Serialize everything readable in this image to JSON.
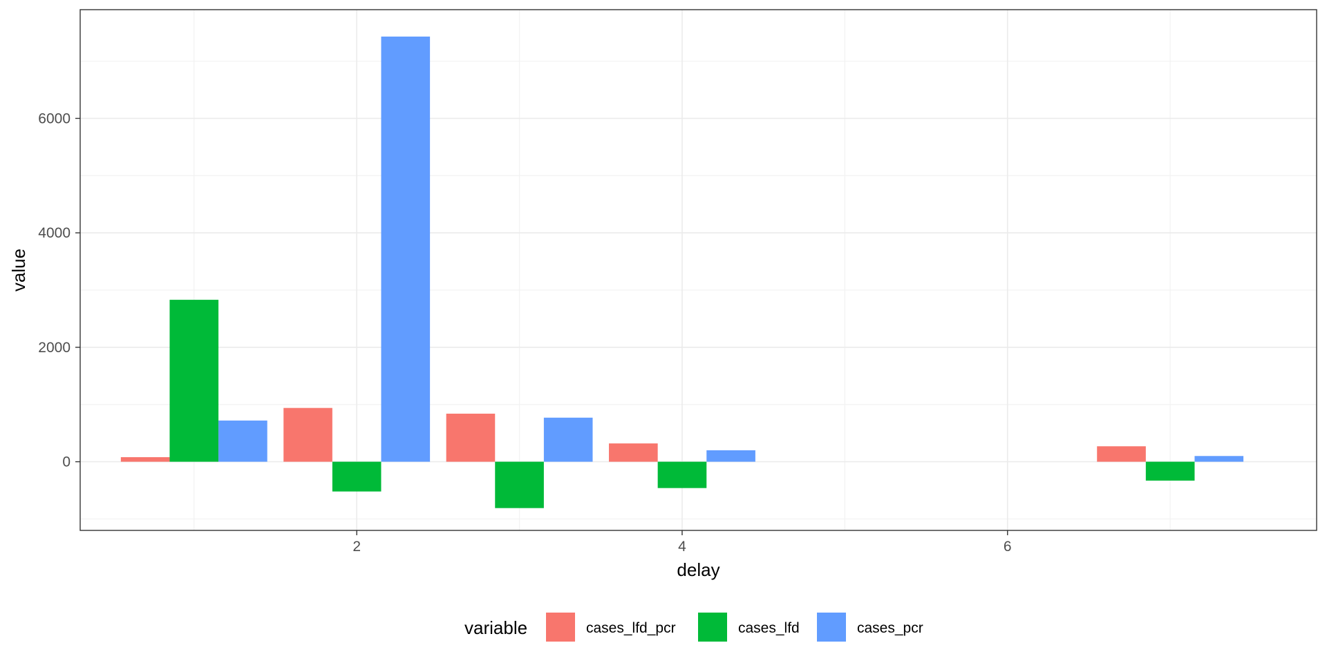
{
  "chart_data": {
    "type": "bar",
    "xlabel": "delay",
    "ylabel": "value",
    "x": [
      1,
      2,
      3,
      4,
      7
    ],
    "series": [
      {
        "name": "cases_lfd_pcr",
        "color": "#F8766D",
        "values": [
          80,
          940,
          840,
          320,
          270
        ]
      },
      {
        "name": "cases_lfd",
        "color": "#00BA38",
        "values": [
          2830,
          -520,
          -810,
          -460,
          -330
        ]
      },
      {
        "name": "cases_pcr",
        "color": "#619CFF",
        "values": [
          720,
          7430,
          770,
          200,
          100
        ]
      }
    ],
    "xlim": [
      0.3,
      7.9
    ],
    "ylim": [
      -1200,
      7900
    ],
    "x_ticks": [
      2,
      4,
      6
    ],
    "y_ticks": [
      0,
      2000,
      4000,
      6000
    ],
    "grid": true,
    "legend": {
      "title": "variable",
      "position": "bottom"
    }
  }
}
